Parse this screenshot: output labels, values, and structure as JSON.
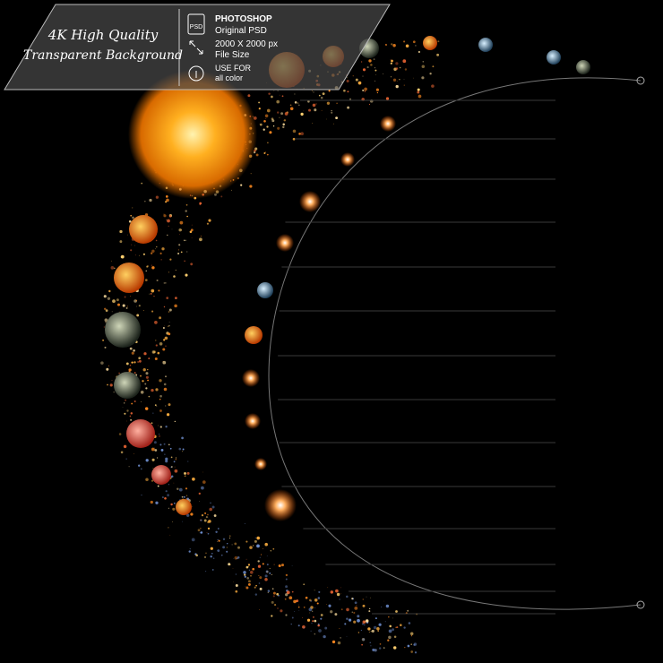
{
  "banner": {
    "headline": "4K High Quality",
    "subheadline": "Transparent Background",
    "features": [
      {
        "icon": "PSD",
        "title": "PHOTOSHOP",
        "text": "Original PSD"
      },
      {
        "title": "2000 X 2000 px",
        "text": "File Size"
      },
      {
        "title": "USE FOR",
        "text": "all color"
      }
    ]
  }
}
